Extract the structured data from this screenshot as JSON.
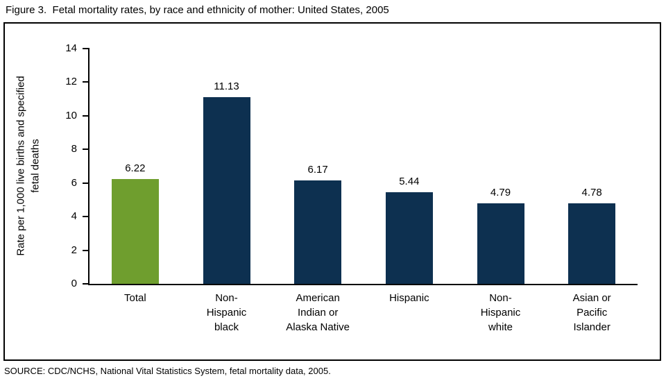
{
  "figure": {
    "title": "Figure 3.  Fetal mortality rates, by race and ethnicity of mother: United States, 2005",
    "source": "SOURCE: CDC/NCHS, National Vital Statistics System, fetal mortality data, 2005."
  },
  "chart_data": {
    "type": "bar",
    "title": "Figure 3. Fetal mortality rates, by race and ethnicity of mother: United States, 2005",
    "categories": [
      "Total",
      "Non-\nHispanic\nblack",
      "American\nIndian or\nAlaska Native",
      "Hispanic",
      "Non-\nHispanic\nwhite",
      "Asian or\nPacific\nIslander"
    ],
    "values": [
      6.22,
      11.13,
      6.17,
      5.44,
      4.79,
      4.78
    ],
    "value_labels": [
      "6.22",
      "11.13",
      "6.17",
      "5.44",
      "4.79",
      "4.78"
    ],
    "xlabel": "",
    "ylabel": "Rate per 1,000 live births and specified\nfetal deaths",
    "ylim": [
      0,
      14
    ],
    "yticks": [
      0,
      2,
      4,
      6,
      8,
      10,
      12,
      14
    ],
    "grid": false,
    "legend": false,
    "bar_colors": [
      "#6f9e2e",
      "#0d3050",
      "#0d3050",
      "#0d3050",
      "#0d3050",
      "#0d3050"
    ],
    "colors": {
      "total_bar_green": "#6f9e2e",
      "default_bar_navy": "#0d3050",
      "axis_black": "#000000"
    }
  }
}
